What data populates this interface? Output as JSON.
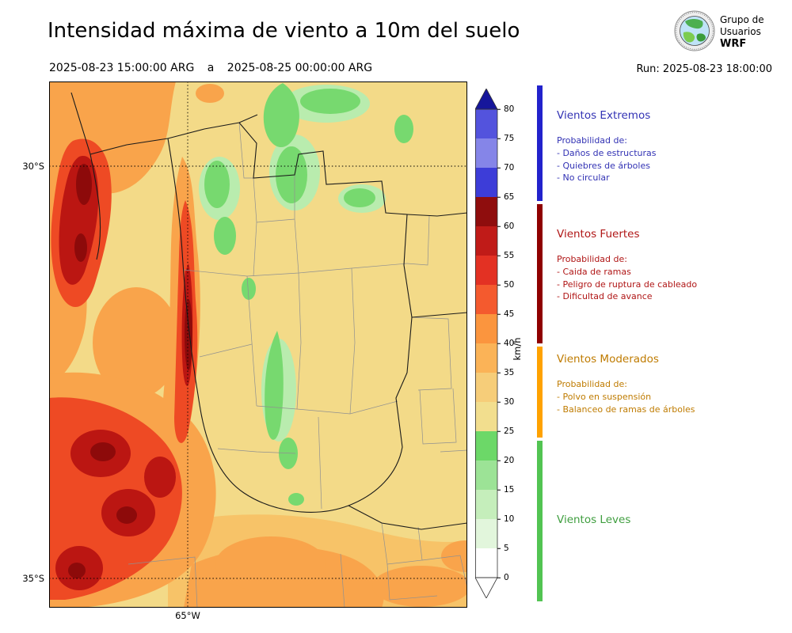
{
  "header": {
    "title": "Intensidad máxima de viento a 10m del suelo",
    "period_start": "2025-08-23 15:00:00 ARG",
    "period_separator": "a",
    "period_end": "2025-08-25 00:00:00 ARG",
    "run_label": "Run: 2025-08-23 18:00:00",
    "logo": {
      "line1": "Grupo de",
      "line2": "Usuarios",
      "line3": "WRF"
    }
  },
  "map": {
    "lat_ticks": [
      "30°S",
      "35°S"
    ],
    "lon_ticks": [
      "65°W"
    ],
    "base_color": "#f3da88"
  },
  "colorbar": {
    "unit": "km/h",
    "ticks": [
      "0",
      "5",
      "10",
      "15",
      "20",
      "25",
      "30",
      "35",
      "40",
      "45",
      "50",
      "55",
      "60",
      "65",
      "70",
      "75",
      "80"
    ],
    "segment_colors": [
      "#ffffff",
      "#e2f6dc",
      "#c5eebb",
      "#9ce396",
      "#6cd868",
      "#f2de8e",
      "#f6cd79",
      "#fbb357",
      "#fb953e",
      "#f45a2e",
      "#e33123",
      "#c01b18",
      "#8f0d0d",
      "#3d3dd8",
      "#8585e8",
      "#5353dd"
    ],
    "over_color": "#16169b",
    "under_color": "#ffffff"
  },
  "legend": {
    "categories": [
      {
        "name": "Vientos Extremos",
        "text_color": "#3232b4",
        "bar_color": "#2222cc",
        "range_kmh": [
          65,
          85
        ],
        "intro": "Probabilidad de:",
        "items": [
          "- Daños de estructuras",
          "- Quiebres de árboles",
          "- No circular"
        ]
      },
      {
        "name": "Vientos Fuertes",
        "text_color": "#b01616",
        "bar_color": "#8f0000",
        "range_kmh": [
          40,
          65
        ],
        "intro": "Probabilidad de:",
        "items": [
          "- Caida de ramas",
          "- Peligro de ruptura de cableado",
          "- Dificultad de avance"
        ]
      },
      {
        "name": "Vientos Moderados",
        "text_color": "#bf7b00",
        "bar_color": "#ffa200",
        "range_kmh": [
          25,
          40
        ],
        "intro": "Probabilidad de:",
        "items": [
          "- Polvo en suspensión",
          "- Balanceo de ramas de árboles"
        ]
      },
      {
        "name": "Vientos Leves",
        "text_color": "#3f9e3f",
        "bar_color": "#52c452",
        "range_kmh": [
          0,
          25
        ],
        "intro": "",
        "items": []
      }
    ]
  }
}
